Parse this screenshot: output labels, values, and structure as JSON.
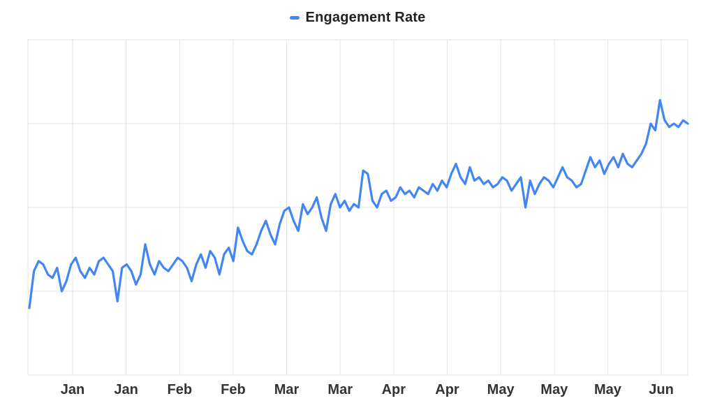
{
  "chart_data": {
    "type": "line",
    "title": "Engagement Rate",
    "legend": {
      "label": "Engagement Rate",
      "position": "top",
      "marker": "dash",
      "marker_color": "#4285F4"
    },
    "categories": [
      "Jan",
      "Jan",
      "Feb",
      "Feb",
      "Mar",
      "Mar",
      "Apr",
      "Apr",
      "May",
      "May",
      "May",
      "Jun"
    ],
    "xlabel": "",
    "ylabel": "",
    "ylim": [
      0,
      10
    ],
    "y_axis_labels_visible": false,
    "grid": true,
    "series": [
      {
        "name": "Engagement Rate",
        "color": "#4285F4",
        "values": [
          2.0,
          3.1,
          3.4,
          3.3,
          3.0,
          2.9,
          3.2,
          2.5,
          2.8,
          3.3,
          3.5,
          3.1,
          2.9,
          3.2,
          3.0,
          3.4,
          3.5,
          3.3,
          3.1,
          2.2,
          3.2,
          3.3,
          3.1,
          2.7,
          3.0,
          3.9,
          3.3,
          3.0,
          3.4,
          3.2,
          3.1,
          3.3,
          3.5,
          3.4,
          3.2,
          2.8,
          3.3,
          3.6,
          3.2,
          3.7,
          3.5,
          3.0,
          3.6,
          3.8,
          3.4,
          4.4,
          4.0,
          3.7,
          3.6,
          3.9,
          4.3,
          4.6,
          4.2,
          3.9,
          4.5,
          4.9,
          5.0,
          4.6,
          4.3,
          5.1,
          4.8,
          5.0,
          5.3,
          4.7,
          4.3,
          5.1,
          5.4,
          5.0,
          5.2,
          4.9,
          5.1,
          5.0,
          6.1,
          6.0,
          5.2,
          5.0,
          5.4,
          5.5,
          5.2,
          5.3,
          5.6,
          5.4,
          5.5,
          5.3,
          5.6,
          5.5,
          5.4,
          5.7,
          5.5,
          5.8,
          5.6,
          6.0,
          6.3,
          5.9,
          5.7,
          6.2,
          5.8,
          5.9,
          5.7,
          5.8,
          5.6,
          5.7,
          5.9,
          5.8,
          5.5,
          5.7,
          5.9,
          5.0,
          5.8,
          5.4,
          5.7,
          5.9,
          5.8,
          5.6,
          5.9,
          6.2,
          5.9,
          5.8,
          5.6,
          5.7,
          6.1,
          6.5,
          6.2,
          6.4,
          6.0,
          6.3,
          6.5,
          6.2,
          6.6,
          6.3,
          6.2,
          6.4,
          6.6,
          6.9,
          7.5,
          7.3,
          8.2,
          7.6,
          7.4,
          7.5,
          7.4,
          7.6,
          7.5
        ]
      }
    ]
  },
  "colors": {
    "accent": "#4285F4",
    "gridline": "#e3e3e3",
    "axis_label": "#333333",
    "legend_text": "#212121",
    "background": "#ffffff"
  }
}
